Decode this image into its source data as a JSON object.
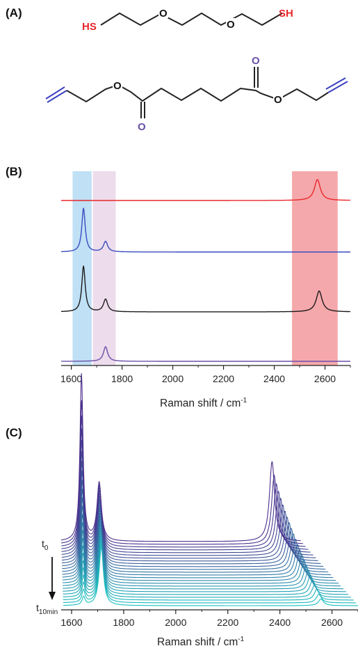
{
  "panels": {
    "a_label": "(A)",
    "b_label": "(B)",
    "c_label": "(C)"
  },
  "molecules": {
    "thiol_left": "HS",
    "thiol_right": "SH",
    "ether_o1": "O",
    "ether_o2": "O",
    "ester_o_left": "O",
    "ester_o_right": "O",
    "carbonyl_o_left": "O",
    "carbonyl_o_right": "O"
  },
  "colors": {
    "thiol": "#e8262a",
    "acrylate": "#6a4fa8",
    "bond": "#222222",
    "ene_bond": "#3a3fc0",
    "band_blue": "#bfe0f5",
    "band_pink": "#ecdcec",
    "band_red": "#f5a8ab"
  },
  "chart_data": [
    {
      "type": "line",
      "panel": "B",
      "xlabel": "Raman shift / cm",
      "xlabel_sup": "-1",
      "xlim": [
        1560,
        2700
      ],
      "xticks": [
        1600,
        1800,
        2000,
        2200,
        2400,
        2600
      ],
      "highlight_bands": [
        {
          "from": 1605,
          "to": 1680,
          "color": "#bfe0f5"
        },
        {
          "from": 1685,
          "to": 1775,
          "color": "#ecdcec"
        },
        {
          "from": 2470,
          "to": 2650,
          "color": "#f5a8ab"
        }
      ],
      "series": [
        {
          "color": "#e8262a",
          "peaks": [
            {
              "x": 2570,
              "height": 1.0,
              "width": 14
            }
          ]
        },
        {
          "color": "#3a4cc0",
          "peaks": [
            {
              "x": 1648,
              "height": 2.1,
              "width": 8
            },
            {
              "x": 1735,
              "height": 0.5,
              "width": 10
            }
          ]
        },
        {
          "color": "#1a1a1a",
          "peaks": [
            {
              "x": 1648,
              "height": 2.2,
              "width": 8
            },
            {
              "x": 1735,
              "height": 0.6,
              "width": 10
            },
            {
              "x": 2577,
              "height": 1.0,
              "width": 14
            }
          ]
        },
        {
          "color": "#6a4fa8",
          "peaks": [
            {
              "x": 1735,
              "height": 0.7,
              "width": 10
            }
          ]
        }
      ]
    },
    {
      "type": "line",
      "panel": "C",
      "style": "waterfall",
      "xlabel": "Raman shift / cm",
      "xlabel_sup": "-1",
      "xlim": [
        1560,
        2700
      ],
      "xticks": [
        1600,
        1800,
        2000,
        2200,
        2400,
        2600
      ],
      "time_start_label": "t",
      "time_start_sub": "0",
      "time_end_label": "t",
      "time_end_sub": "10min",
      "n_traces": 24,
      "color_start": "#4b2e8c",
      "color_end": "#19c0c0",
      "peaks_first": [
        {
          "x": 1638,
          "height": 1.0,
          "width": 7
        },
        {
          "x": 1706,
          "height": 0.35,
          "width": 10
        },
        {
          "x": 2370,
          "height": 0.48,
          "width": 12
        }
      ],
      "peaks_last": [
        {
          "x": 1638,
          "height": 0.05,
          "width": 7
        },
        {
          "x": 1706,
          "height": 0.35,
          "width": 10
        },
        {
          "x": 2370,
          "height": 0.04,
          "width": 12
        }
      ]
    }
  ]
}
